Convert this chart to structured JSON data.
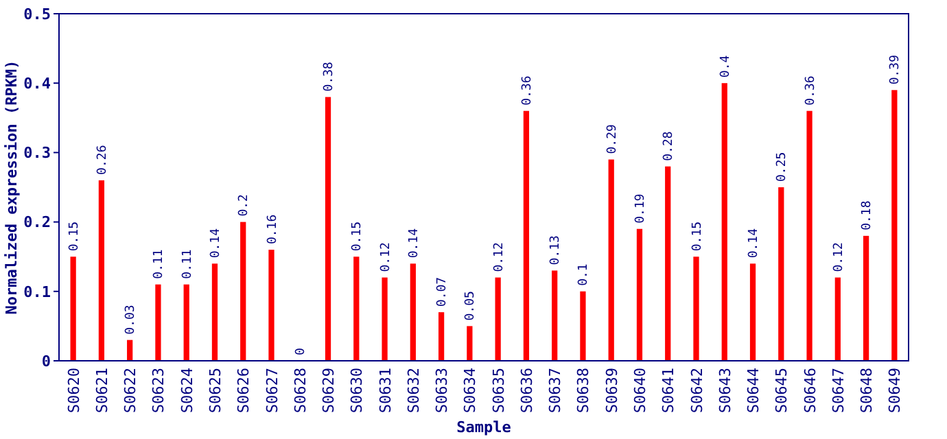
{
  "chart_data": {
    "type": "bar",
    "xlabel": "Sample",
    "ylabel": "Normalized expression (RPKM)",
    "categories": [
      "S0620",
      "S0621",
      "S0622",
      "S0623",
      "S0624",
      "S0625",
      "S0626",
      "S0627",
      "S0628",
      "S0629",
      "S0630",
      "S0631",
      "S0632",
      "S0633",
      "S0634",
      "S0635",
      "S0636",
      "S0637",
      "S0638",
      "S0639",
      "S0640",
      "S0641",
      "S0642",
      "S0643",
      "S0644",
      "S0645",
      "S0646",
      "S0647",
      "S0648",
      "S0649"
    ],
    "values": [
      0.15,
      0.26,
      0.03,
      0.11,
      0.11,
      0.14,
      0.2,
      0.16,
      0,
      0.38,
      0.15,
      0.12,
      0.14,
      0.07,
      0.05,
      0.12,
      0.36,
      0.13,
      0.1,
      0.29,
      0.19,
      0.28,
      0.15,
      0.4,
      0.14,
      0.25,
      0.36,
      0.12,
      0.18,
      0.39
    ],
    "color": "#ff0000",
    "ylim": [
      0,
      0.5
    ],
    "yticks": [
      0,
      0.1,
      0.2,
      0.3,
      0.4,
      0.5
    ],
    "data_labels": true,
    "grid": false
  }
}
